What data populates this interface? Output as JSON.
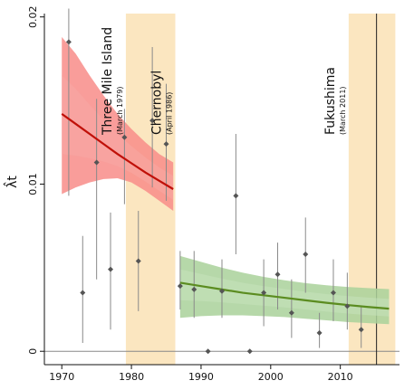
{
  "chart_data": {
    "type": "scatter",
    "ylabel": "λ̂t",
    "xlim": [
      1967.5,
      2018.5
    ],
    "ylim": [
      -0.0008,
      0.0202
    ],
    "x_ticks": [
      1970,
      1980,
      1990,
      2000,
      2010
    ],
    "y_ticks": [
      0,
      0.01,
      0.02
    ],
    "y_tick_labels": [
      "0",
      "0.01",
      "0.02"
    ],
    "grid": false,
    "zero_line": 0,
    "annotations": [
      {
        "id": "tmi",
        "label": "Three Mile Island",
        "sublabel": "(March 1979)",
        "x": 1979.2
      },
      {
        "id": "chernobyl",
        "label": "Chernobyl",
        "sublabel": "(April 1986)",
        "x": 1986.3
      },
      {
        "id": "fukushima",
        "label": "Fukushima",
        "sublabel": "(March 2011)",
        "x": 2011.2
      }
    ],
    "shaded_periods": [
      {
        "from": 1979.2,
        "to": 1986.3,
        "color": "#fbe6c0"
      },
      {
        "from": 2011.2,
        "to": 2017.9,
        "color": "#fbe6c0"
      }
    ],
    "vertical_lines": [
      2015.2
    ],
    "points": [
      {
        "x": 1971,
        "y": 0.0185,
        "lo": 0.0093,
        "hi": 0.0205
      },
      {
        "x": 1973,
        "y": 0.0035,
        "lo": 0.0005,
        "hi": 0.0069
      },
      {
        "x": 1975,
        "y": 0.0113,
        "lo": 0.0043,
        "hi": 0.0151
      },
      {
        "x": 1977,
        "y": 0.0049,
        "lo": 0.0013,
        "hi": 0.0083
      },
      {
        "x": 1979,
        "y": 0.0128,
        "lo": 0.0088,
        "hi": 0.0145
      },
      {
        "x": 1981,
        "y": 0.0054,
        "lo": 0.0024,
        "hi": 0.0084
      },
      {
        "x": 1983,
        "y": 0.0138,
        "lo": 0.0098,
        "hi": 0.0182
      },
      {
        "x": 1985,
        "y": 0.0124,
        "lo": 0.009,
        "hi": 0.016
      },
      {
        "x": 1987,
        "y": 0.0039,
        "lo": 0.0025,
        "hi": 0.006
      },
      {
        "x": 1989,
        "y": 0.0037,
        "lo": 0.002,
        "hi": 0.006
      },
      {
        "x": 1991,
        "y": 0.0,
        "lo": 0.0,
        "hi": 0.0
      },
      {
        "x": 1993,
        "y": 0.0036,
        "lo": 0.002,
        "hi": 0.0055
      },
      {
        "x": 1995,
        "y": 0.0093,
        "lo": 0.0058,
        "hi": 0.013
      },
      {
        "x": 1997,
        "y": 0.0,
        "lo": 0.0,
        "hi": 0.0
      },
      {
        "x": 1999,
        "y": 0.0035,
        "lo": 0.0015,
        "hi": 0.0055
      },
      {
        "x": 2001,
        "y": 0.0046,
        "lo": 0.0025,
        "hi": 0.0065
      },
      {
        "x": 2003,
        "y": 0.0023,
        "lo": 0.0008,
        "hi": 0.0043
      },
      {
        "x": 2005,
        "y": 0.0058,
        "lo": 0.0035,
        "hi": 0.008
      },
      {
        "x": 2007,
        "y": 0.0011,
        "lo": 0.0002,
        "hi": 0.0023
      },
      {
        "x": 2009,
        "y": 0.0035,
        "lo": 0.0018,
        "hi": 0.0055
      },
      {
        "x": 2011,
        "y": 0.0027,
        "lo": 0.0013,
        "hi": 0.0047
      },
      {
        "x": 2013,
        "y": 0.0013,
        "lo": 0.0002,
        "hi": 0.0027
      }
    ],
    "trend_segments": [
      {
        "id": "pre-chernobyl",
        "line_color": "#c01008",
        "band_color": "#f88c88",
        "inner_band_color": "#f7aaa5",
        "x": [
          1970,
          1972,
          1974,
          1976,
          1978,
          1980,
          1982,
          1984,
          1986
        ],
        "y": [
          0.0142,
          0.0136,
          0.013,
          0.0124,
          0.0118,
          0.01125,
          0.0107,
          0.0102,
          0.0097
        ],
        "lo": [
          0.0094,
          0.0098,
          0.0101,
          0.0103,
          0.01035,
          0.0101,
          0.0096,
          0.009,
          0.0084
        ],
        "hi": [
          0.0188,
          0.0178,
          0.0165,
          0.0153,
          0.0142,
          0.0133,
          0.0125,
          0.0118,
          0.0113
        ]
      },
      {
        "id": "post-chernobyl",
        "line_color": "#5b8c20",
        "band_color": "#a9d19a",
        "inner_band_color": "#c8e3bd",
        "x": [
          1987,
          1990,
          1993,
          1996,
          1999,
          2002,
          2005,
          2008,
          2011,
          2014,
          2017
        ],
        "y": [
          0.0041,
          0.0039,
          0.0037,
          0.0035,
          0.00335,
          0.0032,
          0.00305,
          0.0029,
          0.00277,
          0.00265,
          0.00255
        ],
        "lo": [
          0.002,
          0.0021,
          0.00215,
          0.00215,
          0.0021,
          0.00205,
          0.00195,
          0.00185,
          0.00175,
          0.00168,
          0.00162
        ],
        "hi": [
          0.0057,
          0.00535,
          0.005,
          0.0047,
          0.00445,
          0.00425,
          0.00408,
          0.00395,
          0.00385,
          0.00378,
          0.00372
        ]
      }
    ],
    "colors": {
      "point": "#555555",
      "errorbar": "#8a8a8a",
      "zero_line": "#888888",
      "axis": "#111111"
    }
  }
}
